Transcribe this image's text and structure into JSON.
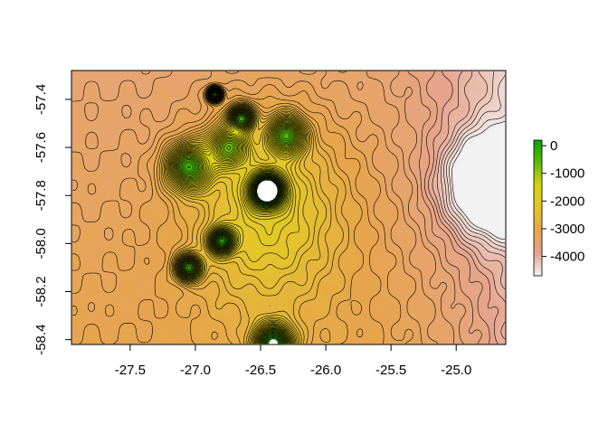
{
  "chart_data": {
    "type": "heatmap",
    "title": "",
    "xlabel": "",
    "ylabel": "",
    "xlim": [
      -27.95,
      -24.62
    ],
    "ylim": [
      -58.42,
      -57.28
    ],
    "x_ticks": [
      -27.5,
      -27.0,
      -26.5,
      -26.0,
      -25.5,
      -25.0
    ],
    "x_tick_labels": [
      "-27.5",
      "-27.0",
      "-26.5",
      "-26.0",
      "-25.5",
      "-25.0"
    ],
    "y_ticks": [
      -57.4,
      -57.6,
      -57.8,
      -58.0,
      -58.2,
      -58.4
    ],
    "y_tick_labels": [
      "-57.4",
      "-57.6",
      "-57.8",
      "-58.0",
      "-58.2",
      "-58.4"
    ],
    "legend": {
      "position": "right",
      "range": [
        -4700,
        200
      ],
      "ticks": [
        0,
        -1000,
        -2000,
        -3000,
        -4000
      ],
      "tick_labels": [
        "0",
        "-1000",
        "-2000",
        "-3000",
        "-4000"
      ],
      "colors": [
        "#f2f2f2",
        "#e6a48d",
        "#e6a44c",
        "#e3c62a",
        "#d7d30f",
        "#5fbd0b",
        "#09a000"
      ]
    },
    "features": [
      {
        "name": "seamount",
        "x": -26.85,
        "y": -57.38,
        "peak": -500,
        "radius": 0.05
      },
      {
        "name": "seamount",
        "x": -26.65,
        "y": -57.48,
        "peak": -700,
        "radius": 0.09
      },
      {
        "name": "seamount",
        "x": -27.05,
        "y": -57.68,
        "peak": -600,
        "radius": 0.16
      },
      {
        "name": "seamount",
        "x": -26.75,
        "y": -57.6,
        "peak": -1300,
        "radius": 0.14
      },
      {
        "name": "island",
        "x": -26.45,
        "y": -57.78,
        "peak": 200,
        "radius": 0.12
      },
      {
        "name": "ridge",
        "x": -26.3,
        "y": -57.55,
        "peak": -1000,
        "radius": 0.13
      },
      {
        "name": "seamount",
        "x": -26.8,
        "y": -57.99,
        "peak": -700,
        "radius": 0.09
      },
      {
        "name": "seamount",
        "x": -27.05,
        "y": -58.1,
        "peak": -600,
        "radius": 0.09
      },
      {
        "name": "island",
        "x": -26.4,
        "y": -58.42,
        "peak": 100,
        "radius": 0.14
      },
      {
        "name": "trench",
        "x": -24.72,
        "y": -57.75,
        "peak": -4700,
        "radius": 0.35
      }
    ]
  }
}
